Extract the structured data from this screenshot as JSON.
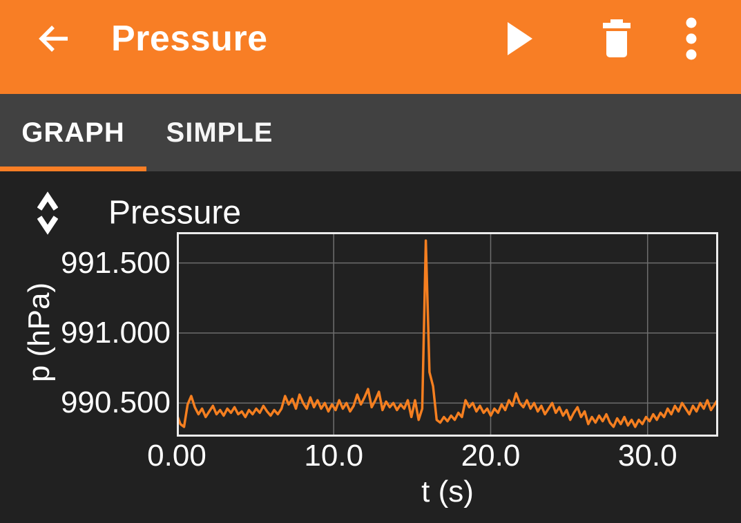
{
  "app_bar": {
    "title": "Pressure",
    "color": "#F87E25",
    "icons": {
      "back": "arrow-left",
      "play": "play-triangle",
      "delete": "trash-can",
      "menu": "three-dots-vertical"
    }
  },
  "tabs": [
    {
      "label": "GRAPH",
      "active": true
    },
    {
      "label": "SIMPLE",
      "active": false
    }
  ],
  "graph_card": {
    "expand_icon": "unfold-more-chevrons",
    "background": "#212121"
  },
  "chart_data": {
    "type": "line",
    "title": "Pressure",
    "xlabel": "t (s)",
    "ylabel": "p (hPa)",
    "xlim": [
      0,
      34.5
    ],
    "ylim": [
      990.26,
      991.72
    ],
    "x_ticks": [
      0,
      10,
      20,
      30
    ],
    "x_tick_labels": [
      "0.00",
      "10.0",
      "20.0",
      "30.0"
    ],
    "y_ticks": [
      990.5,
      991.0,
      991.5
    ],
    "y_tick_labels": [
      "990.500",
      "991.000",
      "991.500"
    ],
    "grid": true,
    "legend": "none",
    "line_color": "#F57F20",
    "border_color": "#ECECEC",
    "grid_color": "#6E6E6E",
    "x_start": 0.0,
    "x_step": 0.23,
    "series_name": "Pressure",
    "values": [
      990.42,
      990.35,
      990.33,
      990.49,
      990.55,
      990.47,
      990.42,
      990.46,
      990.4,
      990.44,
      990.48,
      990.42,
      990.45,
      990.41,
      990.46,
      990.43,
      990.47,
      990.42,
      990.44,
      990.4,
      990.45,
      990.42,
      990.46,
      990.43,
      990.48,
      990.44,
      990.41,
      990.45,
      990.42,
      990.46,
      990.55,
      990.49,
      990.53,
      990.46,
      990.56,
      990.5,
      990.46,
      990.54,
      990.47,
      990.52,
      990.46,
      990.5,
      990.44,
      990.49,
      990.45,
      990.52,
      990.46,
      990.5,
      990.44,
      990.48,
      990.56,
      990.49,
      990.54,
      990.6,
      990.47,
      990.52,
      990.58,
      990.45,
      990.51,
      990.47,
      990.5,
      990.45,
      990.49,
      990.46,
      990.52,
      990.4,
      990.52,
      990.38,
      990.46,
      991.66,
      990.72,
      990.62,
      990.38,
      990.36,
      990.4,
      990.37,
      990.41,
      990.38,
      990.43,
      990.4,
      990.52,
      990.47,
      990.5,
      990.44,
      990.48,
      990.43,
      990.46,
      990.41,
      990.46,
      990.43,
      990.49,
      990.45,
      990.52,
      990.48,
      990.57,
      990.5,
      990.47,
      990.52,
      990.46,
      990.5,
      990.44,
      990.48,
      990.42,
      990.46,
      990.5,
      990.43,
      990.47,
      990.41,
      990.45,
      990.38,
      990.43,
      990.47,
      990.4,
      990.44,
      990.35,
      990.4,
      990.36,
      990.41,
      990.37,
      990.42,
      990.36,
      990.33,
      990.39,
      990.35,
      990.4,
      990.34,
      990.38,
      990.33,
      990.38,
      990.35,
      990.4,
      990.37,
      990.42,
      990.38,
      990.43,
      990.4,
      990.46,
      990.42,
      990.48,
      990.44,
      990.5,
      990.46,
      990.42,
      990.48,
      990.44,
      990.5,
      990.46,
      990.52,
      990.45,
      990.49,
      990.53
    ]
  }
}
